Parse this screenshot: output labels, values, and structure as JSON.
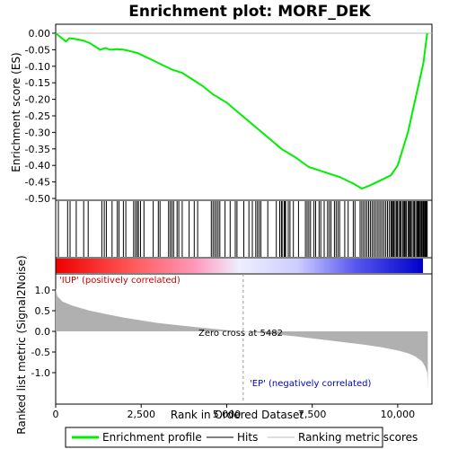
{
  "chart_data": {
    "type": "line",
    "title": "Enrichment plot: MORF_DEK",
    "xlabel": "Rank in Ordered Dataset",
    "ylabel_top": "Enrichment score (ES)",
    "ylabel_bottom": "Ranked list metric (Signal2Noise)",
    "x_ticks": [
      0,
      2500,
      5000,
      7500,
      10000
    ],
    "x_tick_labels": [
      "0",
      "2,500",
      "5,000",
      "7,500",
      "10,000"
    ],
    "xlim": [
      0,
      11000
    ],
    "es_ylim": [
      -0.5,
      0.0
    ],
    "es_ticks": [
      0.0,
      -0.05,
      -0.1,
      -0.15,
      -0.2,
      -0.25,
      -0.3,
      -0.35,
      -0.4,
      -0.45,
      -0.5
    ],
    "es_tick_labels": [
      "0.00",
      "-0.05",
      "-0.10",
      "-0.15",
      "-0.20",
      "-0.25",
      "-0.30",
      "-0.35",
      "-0.40",
      "-0.45",
      "-0.50"
    ],
    "metric_ylim": [
      -1.5,
      1.5
    ],
    "metric_ticks": [
      1.0,
      0.5,
      0.0,
      -0.5,
      -1.0
    ],
    "metric_tick_labels": [
      "1.0",
      "0.5",
      "0.0",
      "-0.5",
      "-1.0"
    ],
    "es_curve": {
      "x": [
        0,
        300,
        400,
        600,
        800,
        1000,
        1300,
        1450,
        1600,
        1800,
        2000,
        2200,
        2400,
        2600,
        2800,
        3100,
        3400,
        3700,
        4000,
        4300,
        4600,
        5000,
        5400,
        5800,
        6200,
        6600,
        7000,
        7400,
        7700,
        8000,
        8300,
        8700,
        8950,
        9200,
        9500,
        9800,
        10000,
        10150,
        10300,
        10450,
        10600,
        10750,
        10860
      ],
      "y": [
        0.0,
        -0.025,
        -0.015,
        -0.018,
        -0.022,
        -0.03,
        -0.05,
        -0.045,
        -0.05,
        -0.048,
        -0.05,
        -0.055,
        -0.06,
        -0.07,
        -0.08,
        -0.095,
        -0.11,
        -0.12,
        -0.14,
        -0.16,
        -0.185,
        -0.21,
        -0.245,
        -0.28,
        -0.315,
        -0.35,
        -0.375,
        -0.405,
        -0.415,
        -0.425,
        -0.435,
        -0.455,
        -0.47,
        -0.46,
        -0.445,
        -0.43,
        -0.4,
        -0.35,
        -0.3,
        -0.23,
        -0.16,
        -0.09,
        0.0
      ]
    },
    "hits": [
      80,
      350,
      420,
      600,
      820,
      950,
      1350,
      1420,
      1480,
      1650,
      1800,
      1850,
      1980,
      2050,
      2280,
      2330,
      2380,
      2420,
      2480,
      2580,
      2850,
      3000,
      3050,
      3300,
      3350,
      3400,
      3450,
      3550,
      3600,
      3700,
      3900,
      4050,
      4150,
      4550,
      4600,
      4650,
      4700,
      4750,
      4800,
      4950,
      5100,
      5250,
      5300,
      5500,
      5650,
      5750,
      5850,
      5900,
      5950,
      6000,
      6200,
      6450,
      6550,
      6600,
      6620,
      6680,
      6700,
      6720,
      6800,
      6850,
      6950,
      7100,
      7300,
      7350,
      7400,
      7450,
      7550,
      7600,
      7700,
      7750,
      7850,
      7950,
      8000,
      8050,
      8150,
      8200,
      8250,
      8300,
      8450,
      8550,
      8700,
      8750,
      8900,
      8950,
      9000,
      9050,
      9100,
      9150,
      9200,
      9250,
      9300,
      9350,
      9400,
      9450,
      9500,
      9550,
      9600,
      9650,
      9700,
      9750,
      9800,
      9820,
      9850,
      9880,
      9900,
      9950,
      9980,
      10000,
      10050,
      10080,
      10100,
      10150,
      10180,
      10200,
      10230,
      10250,
      10300,
      10330,
      10350,
      10380,
      10400,
      10450,
      10480,
      10500,
      10550,
      10580,
      10600,
      10620,
      10650,
      10680,
      10700,
      10720,
      10750,
      10780,
      10800,
      10820,
      10840,
      10860
    ],
    "metric_curve": {
      "x": [
        0,
        50,
        200,
        500,
        1000,
        2000,
        3000,
        4000,
        5000,
        5482,
        6000,
        7000,
        8000,
        9000,
        9500,
        10000,
        10300,
        10500,
        10700,
        10800,
        10860,
        10880
      ],
      "y": [
        1.05,
        0.85,
        0.72,
        0.62,
        0.5,
        0.33,
        0.2,
        0.11,
        0.03,
        0.0,
        -0.04,
        -0.12,
        -0.22,
        -0.32,
        -0.38,
        -0.46,
        -0.53,
        -0.6,
        -0.72,
        -0.85,
        -1.0,
        -1.35
      ]
    },
    "zero_cross_rank": 5482,
    "annotations": {
      "up_label": "'IUP' (positively correlated)",
      "down_label": "'EP' (negatively correlated)",
      "zero_cross_label": "Zero cross at 5482"
    },
    "legend": {
      "placement": "bottom",
      "items": [
        {
          "label": "Enrichment profile",
          "color": "#00ee00"
        },
        {
          "label": "Hits",
          "color": "#000000"
        },
        {
          "label": "Ranking metric scores",
          "color": "#bbbbbb"
        }
      ]
    },
    "colors": {
      "es_line": "#00ee00",
      "hits": "#000000",
      "metric_fill": "#b0b0b0",
      "up_label": "#cc0000",
      "down_label": "#0000cc",
      "grid_zero": "#bbbbbb"
    }
  }
}
